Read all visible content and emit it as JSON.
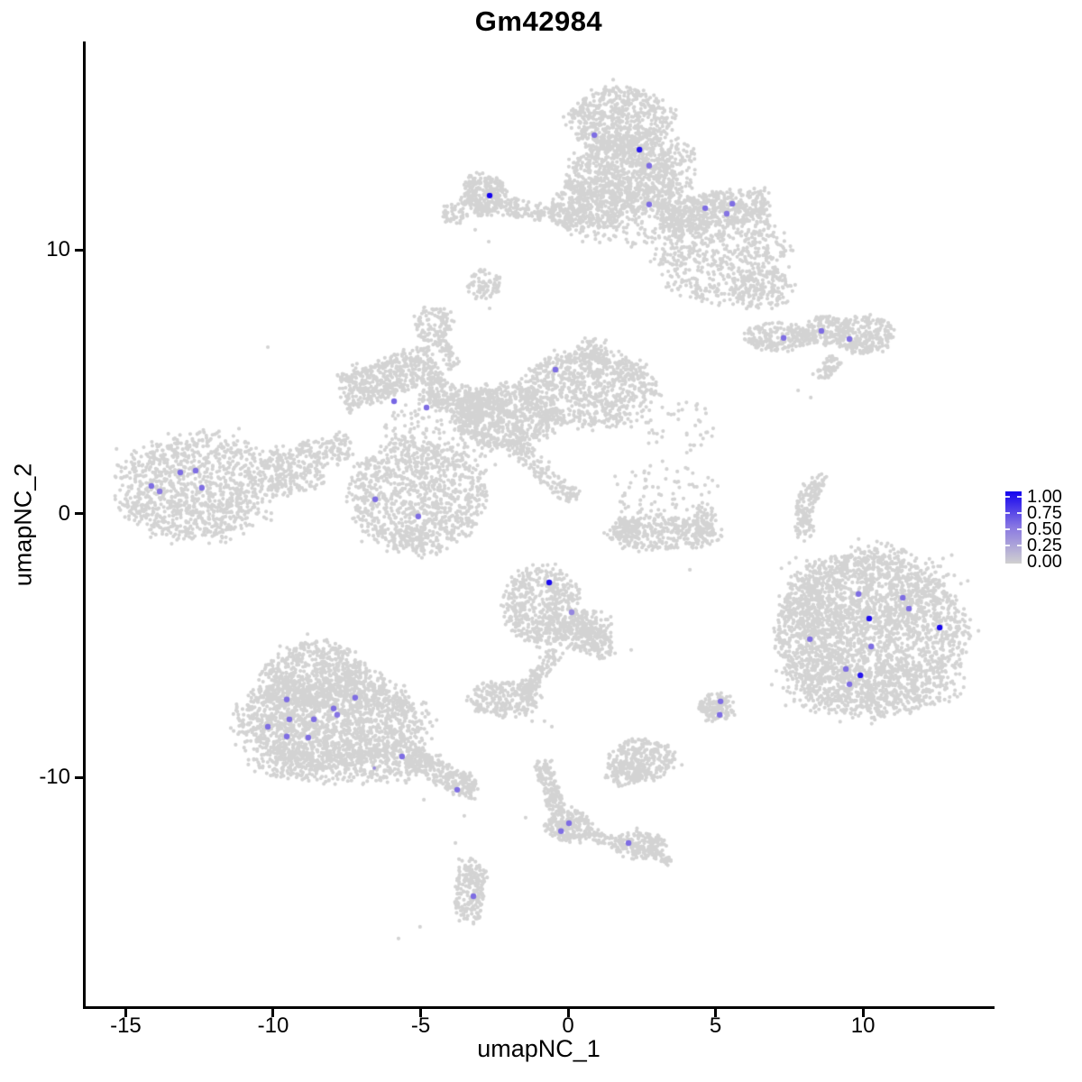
{
  "figure": {
    "title": "Gm42984",
    "x_axis_label": "umapNC_1",
    "y_axis_label": "umapNC_2"
  },
  "legend": {
    "tick_labels": [
      "1.00",
      "0.75",
      "0.50",
      "0.25",
      "0.00"
    ]
  },
  "colors": {
    "background": "#ffffff",
    "axis": "#000000",
    "base_point": "#d3d3d3",
    "gradient_low": "#d0d0d0",
    "gradient_mid": "#8a79e2",
    "gradient_high": "#1403ef"
  },
  "chart_data": {
    "type": "scatter",
    "title": "Gm42984",
    "xlabel": "umapNC_1",
    "ylabel": "umapNC_2",
    "xlim": [
      -16.45,
      14.46
    ],
    "ylim": [
      -18.67,
      17.91
    ],
    "grid": false,
    "x_ticks": [
      -15,
      -10,
      -5,
      0,
      5,
      10
    ],
    "x_tick_labels": [
      "-15",
      "-10",
      "-5",
      "0",
      "5",
      "10"
    ],
    "y_ticks": [
      10,
      0,
      -10
    ],
    "y_tick_labels": [
      "10",
      "0",
      "-10"
    ],
    "legend_scale": {
      "range": [
        0,
        1
      ],
      "ticks": [
        1.0,
        0.75,
        0.5,
        0.25,
        0.0
      ],
      "position": "right"
    },
    "base_point_radius": 2.1,
    "highlight_point_radius": 3.2,
    "background_clusters": [
      {
        "kind": "blob",
        "x": 1.83,
        "y": 14.87,
        "sx": 1.2,
        "sy": 0.95,
        "n": 650
      },
      {
        "kind": "blob",
        "x": 1.83,
        "y": 12.82,
        "sx": 1.25,
        "sy": 1.1,
        "n": 800
      },
      {
        "kind": "blob",
        "x": 3.67,
        "y": 13.16,
        "sx": 0.5,
        "sy": 0.8,
        "n": 120
      },
      {
        "kind": "blob",
        "x": 1.83,
        "y": 11.45,
        "sx": 1.4,
        "sy": 1.0,
        "n": 230
      },
      {
        "kind": "band",
        "x1": 3.15,
        "y1": 11.28,
        "x2": 6.79,
        "y2": 11.76,
        "w": 0.55,
        "n": 520
      },
      {
        "kind": "blob",
        "x": 5.2,
        "y": 9.74,
        "sx": 1.6,
        "sy": 1.25,
        "n": 620
      },
      {
        "kind": "blob",
        "x": 6.57,
        "y": 8.55,
        "sx": 0.75,
        "sy": 0.6,
        "n": 140
      },
      {
        "kind": "band",
        "x1": 0.46,
        "y1": 12.48,
        "x2": -0.37,
        "y2": 11.01,
        "w": 0.45,
        "n": 150
      },
      {
        "kind": "blob",
        "x": -2.84,
        "y": 12.1,
        "sx": 0.55,
        "sy": 0.55,
        "n": 300
      },
      {
        "kind": "band",
        "x1": -2.2,
        "y1": 11.69,
        "x2": 1.77,
        "y2": 11.04,
        "w": 0.28,
        "n": 230
      },
      {
        "kind": "blob",
        "x": -3.88,
        "y": 11.38,
        "sx": 0.32,
        "sy": 0.3,
        "n": 45
      },
      {
        "kind": "blob",
        "x": 7.19,
        "y": 6.7,
        "sx": 0.86,
        "sy": 0.38,
        "n": 230
      },
      {
        "kind": "blob",
        "x": 8.78,
        "y": 6.94,
        "sx": 0.52,
        "sy": 0.41,
        "n": 140
      },
      {
        "kind": "blob",
        "x": 10.0,
        "y": 6.8,
        "sx": 0.73,
        "sy": 0.51,
        "n": 260
      },
      {
        "kind": "band",
        "x1": 8.5,
        "y1": 5.13,
        "x2": 9.11,
        "y2": 5.88,
        "w": 0.22,
        "n": 60
      },
      {
        "kind": "blob",
        "x": 0.67,
        "y": 4.72,
        "sx": 1.6,
        "sy": 1.05,
        "n": 820
      },
      {
        "kind": "blob",
        "x": 0.8,
        "y": 5.98,
        "sx": 0.45,
        "sy": 0.5,
        "n": 90
      },
      {
        "kind": "blob",
        "x": -2.14,
        "y": 3.69,
        "sx": 1.3,
        "sy": 0.85,
        "n": 700
      },
      {
        "kind": "band",
        "x1": -7.71,
        "y1": 4.55,
        "x2": -4.5,
        "y2": 5.78,
        "w": 0.62,
        "n": 500
      },
      {
        "kind": "band",
        "x1": -4.89,
        "y1": 4.79,
        "x2": -2.75,
        "y2": 3.93,
        "w": 0.5,
        "n": 230
      },
      {
        "kind": "blob",
        "x": -3.82,
        "y": 3.01,
        "sx": 1.7,
        "sy": 1.1,
        "n": 240
      },
      {
        "kind": "blob",
        "x": -5.14,
        "y": 0.68,
        "sx": 1.6,
        "sy": 1.54,
        "n": 1000
      },
      {
        "kind": "blob",
        "x": -5.35,
        "y": -0.96,
        "sx": 0.5,
        "sy": 0.35,
        "n": 70
      },
      {
        "kind": "band",
        "x1": -2.08,
        "y1": 2.84,
        "x2": 0.24,
        "y2": 0.58,
        "w": 0.28,
        "n": 150
      },
      {
        "kind": "blob",
        "x": -4.56,
        "y": 7.18,
        "sx": 0.45,
        "sy": 0.5,
        "n": 110
      },
      {
        "kind": "band",
        "x1": -4.37,
        "y1": 6.56,
        "x2": -3.82,
        "y2": 5.54,
        "w": 0.2,
        "n": 55
      },
      {
        "kind": "blob",
        "x": -2.84,
        "y": 8.68,
        "sx": 0.42,
        "sy": 0.42,
        "n": 75
      },
      {
        "kind": "blob",
        "x": -12.6,
        "y": 1.03,
        "sx": 1.9,
        "sy": 1.44,
        "n": 1150
      },
      {
        "kind": "band",
        "x1": -10.18,
        "y1": 1.74,
        "x2": -7.4,
        "y2": 2.67,
        "w": 0.5,
        "n": 230
      },
      {
        "kind": "band",
        "x1": -10.09,
        "y1": 1.03,
        "x2": -8.26,
        "y2": 1.37,
        "w": 0.35,
        "n": 90
      },
      {
        "kind": "blob",
        "x": -8.56,
        "y": -6.09,
        "sx": 1.28,
        "sy": 0.89,
        "n": 600
      },
      {
        "kind": "blob",
        "x": -8.01,
        "y": -7.86,
        "sx": 2.3,
        "sy": 1.3,
        "n": 1750
      },
      {
        "kind": "blob",
        "x": -7.49,
        "y": -9.44,
        "sx": 2.29,
        "sy": 0.55,
        "n": 480
      },
      {
        "kind": "band",
        "x1": -5.35,
        "y1": -9.16,
        "x2": -3.12,
        "y2": -10.56,
        "w": 0.35,
        "n": 250
      },
      {
        "kind": "blob",
        "x": -0.86,
        "y": -3.49,
        "sx": 0.92,
        "sy": 1.03,
        "n": 520
      },
      {
        "kind": "blob",
        "x": 0.55,
        "y": -4.44,
        "sx": 0.67,
        "sy": 0.62,
        "n": 210
      },
      {
        "kind": "band",
        "x1": 0.31,
        "y1": -4.1,
        "x2": 1.47,
        "y2": -5.37,
        "w": 0.35,
        "n": 110
      },
      {
        "kind": "band",
        "x1": -0.37,
        "y1": -5.2,
        "x2": -1.62,
        "y2": -6.91,
        "w": 0.22,
        "n": 110
      },
      {
        "kind": "blob",
        "x": -2.14,
        "y": -7.01,
        "sx": 0.86,
        "sy": 0.51,
        "n": 250
      },
      {
        "kind": "blob",
        "x": 10.34,
        "y": -4.44,
        "sx": 2.2,
        "sy": 2.2,
        "n": 2200
      },
      {
        "kind": "blob",
        "x": 9.94,
        "y": -3.08,
        "sx": 1.8,
        "sy": 1.2,
        "n": 420
      },
      {
        "kind": "blob",
        "x": 8.04,
        "y": -4.44,
        "sx": 0.8,
        "sy": 1.3,
        "n": 230
      },
      {
        "kind": "blob",
        "x": 10.24,
        "y": -6.56,
        "sx": 2.2,
        "sy": 0.8,
        "n": 380
      },
      {
        "kind": "blob",
        "x": 5.05,
        "y": -7.32,
        "sx": 0.4,
        "sy": 0.41,
        "n": 130
      },
      {
        "kind": "blob",
        "x": 4.56,
        "y": -7.28,
        "sx": 0.14,
        "sy": 0.12,
        "n": 15
      },
      {
        "kind": "blob",
        "x": 2.51,
        "y": -9.33,
        "sx": 0.8,
        "sy": 0.55,
        "n": 280
      },
      {
        "kind": "blob",
        "x": 1.99,
        "y": -9.85,
        "sx": 0.5,
        "sy": 0.35,
        "n": 100
      },
      {
        "kind": "band",
        "x1": -0.89,
        "y1": -9.4,
        "x2": -0.31,
        "y2": -11.35,
        "w": 0.25,
        "n": 150
      },
      {
        "kind": "blob",
        "x": 0.0,
        "y": -11.83,
        "sx": 0.55,
        "sy": 0.44,
        "n": 210
      },
      {
        "kind": "band",
        "x1": 0.55,
        "y1": -12.03,
        "x2": 1.77,
        "y2": -12.51,
        "w": 0.2,
        "n": 65
      },
      {
        "kind": "blob",
        "x": 2.45,
        "y": -12.58,
        "sx": 0.61,
        "sy": 0.38,
        "n": 180
      },
      {
        "kind": "band",
        "x1": 2.91,
        "y1": -12.82,
        "x2": 3.43,
        "y2": -13.26,
        "w": 0.15,
        "n": 35
      },
      {
        "kind": "blob",
        "x": -3.33,
        "y": -14.29,
        "sx": 0.37,
        "sy": 0.85,
        "n": 170
      },
      {
        "kind": "blob",
        "x": -3.12,
        "y": -13.74,
        "sx": 0.28,
        "sy": 0.3,
        "n": 45
      },
      {
        "kind": "band",
        "x1": 8.35,
        "y1": 1.2,
        "x2": 7.95,
        "y2": 0.17,
        "w": 0.28,
        "n": 70
      },
      {
        "kind": "band",
        "x1": 7.95,
        "y1": 0.17,
        "x2": 8.04,
        "y2": -0.89,
        "w": 0.25,
        "n": 70
      },
      {
        "kind": "blob",
        "x": 8.5,
        "y": 1.3,
        "sx": 0.2,
        "sy": 0.2,
        "n": 18
      },
      {
        "kind": "blob",
        "x": 3.21,
        "y": 0.68,
        "sx": 1.3,
        "sy": 0.95,
        "n": 90
      },
      {
        "kind": "blob",
        "x": 3.67,
        "y": 3.42,
        "sx": 0.9,
        "sy": 0.9,
        "n": 45
      },
      {
        "kind": "blob",
        "x": 3.21,
        "y": -0.75,
        "sx": 1.38,
        "sy": 0.48,
        "n": 330
      },
      {
        "kind": "blob",
        "x": 1.99,
        "y": -0.51,
        "sx": 0.3,
        "sy": 0.35,
        "n": 55
      },
      {
        "kind": "blob",
        "x": 4.65,
        "y": -0.27,
        "sx": 0.3,
        "sy": 0.4,
        "n": 60
      }
    ],
    "background_dots": [
      [
        -2.97,
        9.26
      ],
      [
        -2.66,
        7.79
      ],
      [
        -10.18,
        6.32
      ],
      [
        -3.15,
        10.77
      ],
      [
        -2.69,
        10.32
      ],
      [
        5.14,
        8.0
      ],
      [
        7.8,
        4.68
      ],
      [
        8.23,
        4.41
      ],
      [
        8.01,
        -1.03
      ],
      [
        8.1,
        -1.78
      ],
      [
        8.56,
        -2.43
      ],
      [
        8.41,
        -2.91
      ],
      [
        7.58,
        -3.66
      ],
      [
        7.34,
        -4.79
      ],
      [
        9.05,
        -1.61
      ],
      [
        4.13,
        -2.12
      ],
      [
        2.14,
        -5.16
      ],
      [
        -0.8,
        -7.86
      ],
      [
        -1.22,
        -7.86
      ],
      [
        -0.55,
        -8.07
      ],
      [
        -1.44,
        -11.52
      ],
      [
        -4.89,
        -10.84
      ],
      [
        -3.52,
        -11.45
      ],
      [
        -3.82,
        -12.48
      ],
      [
        -3.7,
        -13.09
      ],
      [
        -5.02,
        -15.66
      ],
      [
        -5.75,
        -16.1
      ]
    ],
    "expression_points": [
      {
        "x": 0.89,
        "y": 14.36,
        "v": 0.55
      },
      {
        "x": 2.42,
        "y": 13.81,
        "v": 0.92
      },
      {
        "x": 2.75,
        "y": 13.2,
        "v": 0.55
      },
      {
        "x": -2.66,
        "y": 12.07,
        "v": 1.0
      },
      {
        "x": 2.75,
        "y": 11.73,
        "v": 0.55
      },
      {
        "x": 4.65,
        "y": 11.59,
        "v": 0.55
      },
      {
        "x": 5.57,
        "y": 11.76,
        "v": 0.55
      },
      {
        "x": 5.38,
        "y": 11.38,
        "v": 0.52
      },
      {
        "x": 7.31,
        "y": 6.67,
        "v": 0.55
      },
      {
        "x": 8.59,
        "y": 6.94,
        "v": 0.55
      },
      {
        "x": 9.54,
        "y": 6.63,
        "v": 0.55
      },
      {
        "x": -0.43,
        "y": 5.47,
        "v": 0.55
      },
      {
        "x": -5.9,
        "y": 4.27,
        "v": 0.58
      },
      {
        "x": -4.8,
        "y": 4.03,
        "v": 0.55
      },
      {
        "x": -13.15,
        "y": 1.57,
        "v": 0.55
      },
      {
        "x": -12.63,
        "y": 1.64,
        "v": 0.55
      },
      {
        "x": -14.13,
        "y": 1.06,
        "v": 0.55
      },
      {
        "x": -13.85,
        "y": 0.85,
        "v": 0.5
      },
      {
        "x": -12.42,
        "y": 0.99,
        "v": 0.55
      },
      {
        "x": -6.54,
        "y": 0.55,
        "v": 0.55
      },
      {
        "x": -5.08,
        "y": -0.1,
        "v": 0.55
      },
      {
        "x": -0.64,
        "y": -2.6,
        "v": 0.97
      },
      {
        "x": 0.12,
        "y": -3.73,
        "v": 0.42
      },
      {
        "x": -9.54,
        "y": -7.04,
        "v": 0.55
      },
      {
        "x": -7.22,
        "y": -6.97,
        "v": 0.55
      },
      {
        "x": -7.95,
        "y": -7.38,
        "v": 0.55
      },
      {
        "x": -7.83,
        "y": -7.62,
        "v": 0.52
      },
      {
        "x": -9.45,
        "y": -7.79,
        "v": 0.55
      },
      {
        "x": -8.62,
        "y": -7.79,
        "v": 0.55
      },
      {
        "x": -10.18,
        "y": -8.07,
        "v": 0.55
      },
      {
        "x": -9.54,
        "y": -8.44,
        "v": 0.55
      },
      {
        "x": -8.81,
        "y": -8.48,
        "v": 0.55
      },
      {
        "x": -5.63,
        "y": -9.2,
        "v": 0.55
      },
      {
        "x": -6.57,
        "y": -9.64,
        "v": 0.4,
        "r": 1.9
      },
      {
        "x": -3.76,
        "y": -10.46,
        "v": 0.55
      },
      {
        "x": 0.03,
        "y": -11.73,
        "v": 0.55
      },
      {
        "x": -0.24,
        "y": -12.03,
        "v": 0.55
      },
      {
        "x": 2.05,
        "y": -12.48,
        "v": 0.55
      },
      {
        "x": -3.21,
        "y": -14.5,
        "v": 0.55
      },
      {
        "x": 5.17,
        "y": -7.11,
        "v": 0.55
      },
      {
        "x": 5.14,
        "y": -7.62,
        "v": 0.55
      },
      {
        "x": 9.85,
        "y": -3.04,
        "v": 0.55
      },
      {
        "x": 11.35,
        "y": -3.18,
        "v": 0.55
      },
      {
        "x": 11.56,
        "y": -3.59,
        "v": 0.55
      },
      {
        "x": 10.21,
        "y": -3.97,
        "v": 0.95
      },
      {
        "x": 12.6,
        "y": -4.31,
        "v": 0.98
      },
      {
        "x": 8.2,
        "y": -4.75,
        "v": 0.55
      },
      {
        "x": 10.28,
        "y": -5.03,
        "v": 0.55
      },
      {
        "x": 9.42,
        "y": -5.88,
        "v": 0.55
      },
      {
        "x": 9.91,
        "y": -6.12,
        "v": 0.93
      },
      {
        "x": 9.54,
        "y": -6.46,
        "v": 0.55
      }
    ]
  }
}
